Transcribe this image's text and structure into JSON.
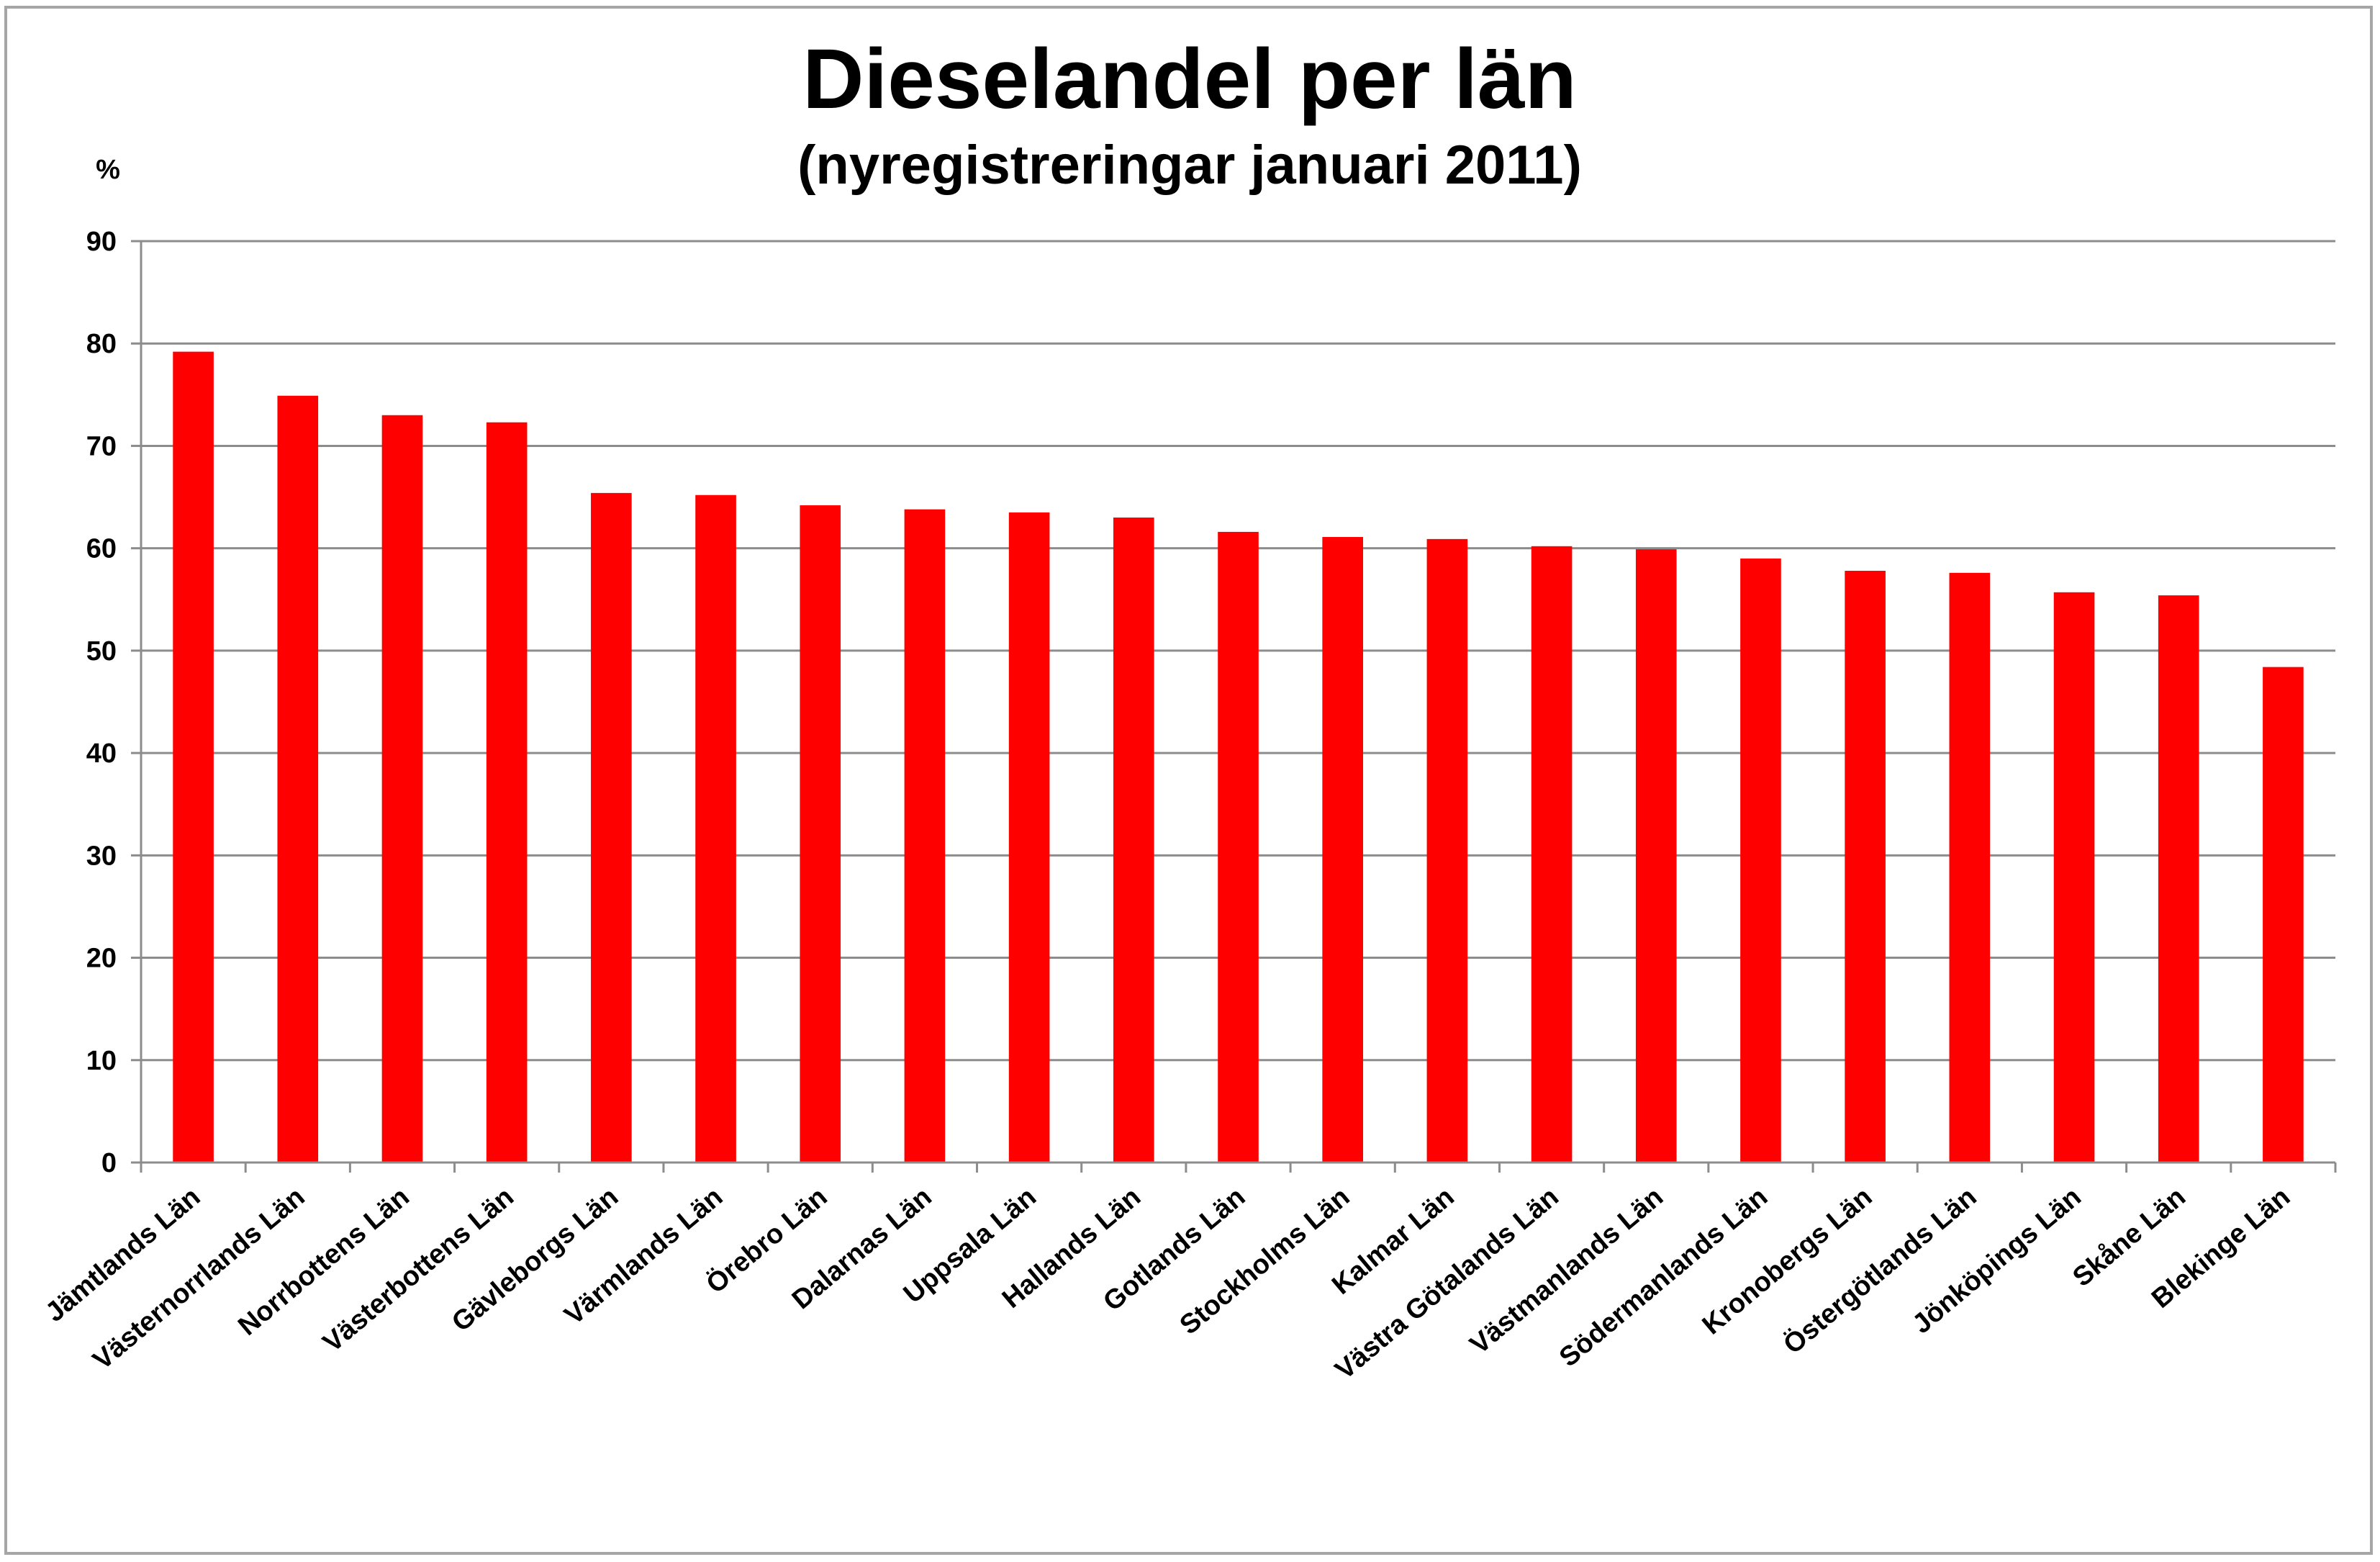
{
  "chart_data": {
    "type": "bar",
    "title": "Dieselandel per län",
    "subtitle": "(nyregistreringar januari 2011)",
    "ylabel": "%",
    "xlabel": "",
    "ylim": [
      0,
      90
    ],
    "yticks": [
      0,
      10,
      20,
      30,
      40,
      50,
      60,
      70,
      80,
      90
    ],
    "grid": true,
    "bar_color": "#ff0000",
    "categories": [
      "Jämtlands Län",
      "Västernorrlands Län",
      "Norrbottens Län",
      "Västerbottens Län",
      "Gävleborgs Län",
      "Värmlands Län",
      "Örebro Län",
      "Dalarnas Län",
      "Uppsala Län",
      "Hallands Län",
      "Gotlands Län",
      "Stockholms Län",
      "Kalmar Län",
      "Västra Götalands Län",
      "Västmanlands Län",
      "Södermanlands Län",
      "Kronobergs Län",
      "Östergötlands Län",
      "Jönköpings Län",
      "Skåne Län",
      "Blekinge Län"
    ],
    "values": [
      79.2,
      74.9,
      73.0,
      72.3,
      65.4,
      65.2,
      64.2,
      63.8,
      63.5,
      63.0,
      61.6,
      61.1,
      60.9,
      60.2,
      59.9,
      59.0,
      57.8,
      57.6,
      55.7,
      55.4,
      48.4
    ]
  }
}
